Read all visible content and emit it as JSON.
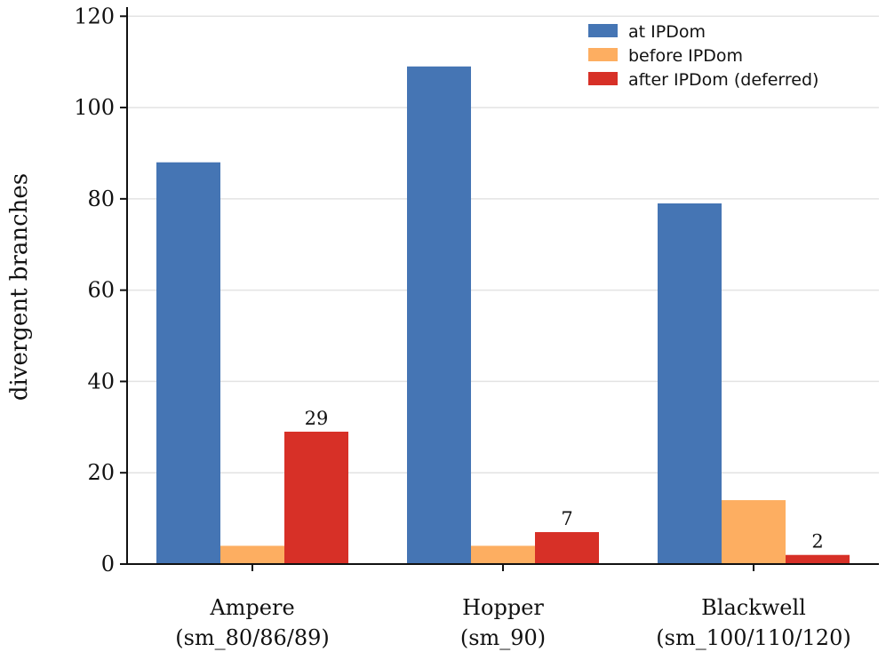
{
  "chart_data": {
    "type": "bar",
    "categories": [
      [
        "Ampere",
        "(sm_80/86/89)"
      ],
      [
        "Hopper",
        "(sm_90)"
      ],
      [
        "Blackwell",
        "(sm_100/110/120)"
      ]
    ],
    "series": [
      {
        "name": "at IPDom",
        "color": "#4575b4",
        "values": [
          88,
          109,
          79
        ]
      },
      {
        "name": "before IPDom",
        "color": "#fdae61",
        "values": [
          4,
          4,
          14
        ]
      },
      {
        "name": "after IPDom (deferred)",
        "color": "#d73027",
        "values": [
          29,
          7,
          2
        ]
      }
    ],
    "annotated_series": "after IPDom (deferred)",
    "ylabel": "divergent branches",
    "xlabel": "",
    "ylim": [
      0,
      122
    ],
    "yticks": [
      0,
      20,
      40,
      60,
      80,
      100,
      120
    ],
    "grid": "horizontal",
    "legend_position": "top-right"
  }
}
